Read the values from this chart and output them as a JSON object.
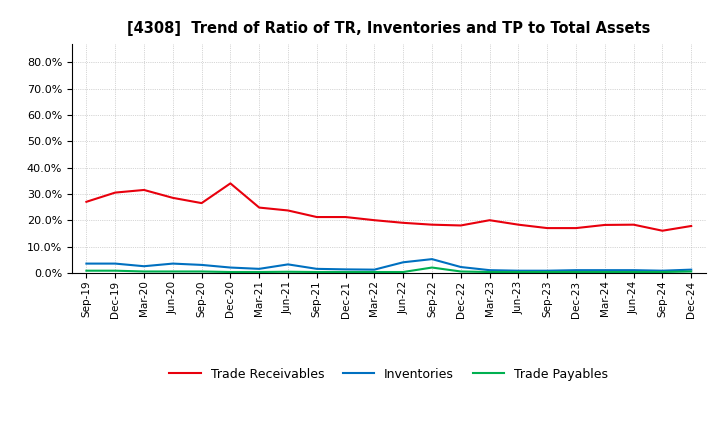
{
  "title": "[4308]  Trend of Ratio of TR, Inventories and TP to Total Assets",
  "x_labels": [
    "Sep-19",
    "Dec-19",
    "Mar-20",
    "Jun-20",
    "Sep-20",
    "Dec-20",
    "Mar-21",
    "Jun-21",
    "Sep-21",
    "Dec-21",
    "Mar-22",
    "Jun-22",
    "Sep-22",
    "Dec-22",
    "Mar-23",
    "Jun-23",
    "Sep-23",
    "Dec-23",
    "Mar-24",
    "Jun-24",
    "Sep-24",
    "Dec-24"
  ],
  "trade_receivables": [
    0.27,
    0.305,
    0.315,
    0.285,
    0.265,
    0.34,
    0.248,
    0.237,
    0.212,
    0.212,
    0.2,
    0.19,
    0.183,
    0.18,
    0.2,
    0.183,
    0.17,
    0.17,
    0.182,
    0.183,
    0.16,
    0.178
  ],
  "inventories": [
    0.035,
    0.035,
    0.025,
    0.035,
    0.03,
    0.02,
    0.015,
    0.032,
    0.015,
    0.013,
    0.012,
    0.04,
    0.052,
    0.022,
    0.01,
    0.008,
    0.008,
    0.01,
    0.01,
    0.01,
    0.008,
    0.012
  ],
  "trade_payables": [
    0.008,
    0.008,
    0.005,
    0.005,
    0.005,
    0.003,
    0.003,
    0.004,
    0.003,
    0.003,
    0.003,
    0.003,
    0.02,
    0.005,
    0.003,
    0.003,
    0.003,
    0.003,
    0.003,
    0.003,
    0.003,
    0.005
  ],
  "ylim": [
    0.0,
    0.87
  ],
  "yticks": [
    0.0,
    0.1,
    0.2,
    0.3,
    0.4,
    0.5,
    0.6,
    0.7,
    0.8
  ],
  "line_colors": {
    "trade_receivables": "#e8000d",
    "inventories": "#0070c0",
    "trade_payables": "#00b050"
  },
  "legend_labels": [
    "Trade Receivables",
    "Inventories",
    "Trade Payables"
  ],
  "background_color": "#ffffff",
  "plot_bg_color": "#ffffff",
  "grid_color": "#b0b0b0"
}
